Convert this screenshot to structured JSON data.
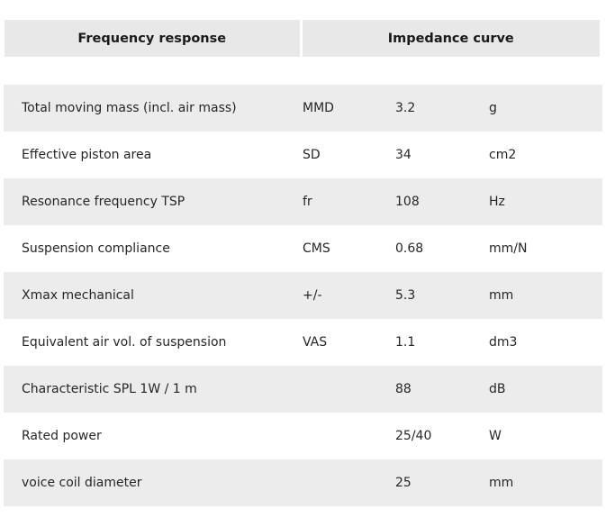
{
  "tabs": [
    {
      "label": "Frequency response"
    },
    {
      "label": "Impedance curve"
    }
  ],
  "specs": [
    {
      "parameter": "Total moving mass (incl. air mass)",
      "symbol": "MMD",
      "value": "3.2",
      "unit": "g"
    },
    {
      "parameter": "Effective piston area",
      "symbol": "SD",
      "value": "34",
      "unit": "cm2"
    },
    {
      "parameter": "Resonance frequency TSP",
      "symbol": "fr",
      "value": "108",
      "unit": "Hz"
    },
    {
      "parameter": "Suspension compliance",
      "symbol": "CMS",
      "value": "0.68",
      "unit": "mm/N"
    },
    {
      "parameter": "Xmax mechanical",
      "symbol": "+/-",
      "value": "5.3",
      "unit": "mm"
    },
    {
      "parameter": "Equivalent air vol. of suspension",
      "symbol": "VAS",
      "value": "1.1",
      "unit": "dm3"
    },
    {
      "parameter": "Characteristic SPL 1W / 1 m",
      "symbol": "",
      "value": "88",
      "unit": "dB"
    },
    {
      "parameter": "Rated power",
      "symbol": "",
      "value": "25/40",
      "unit": "W"
    },
    {
      "parameter": "voice coil diameter",
      "symbol": "",
      "value": "25",
      "unit": "mm"
    }
  ]
}
